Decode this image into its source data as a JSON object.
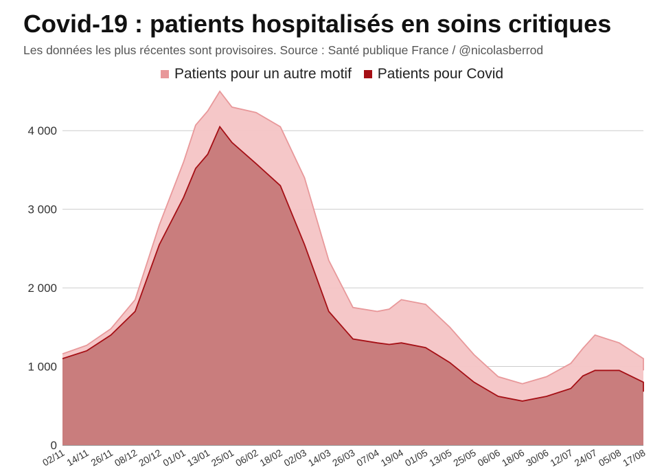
{
  "header": {
    "title": "Covid-19 : patients hospitalisés en soins critiques",
    "subtitle": "Les données les plus récentes sont provisoires. Source : Santé publique France / @nicolasberrod"
  },
  "legend": [
    {
      "label": "Patients pour un autre motif",
      "color": "#e8989a"
    },
    {
      "label": "Patients pour Covid",
      "color": "#a50f15"
    }
  ],
  "chart_data": {
    "type": "area",
    "stacked": true,
    "title": "Covid-19 : patients hospitalisés en soins critiques",
    "subtitle": "Les données les plus récentes sont provisoires. Source : Santé publique France / @nicolasberrod",
    "xlabel": "",
    "ylabel": "",
    "ylim": [
      0,
      4500
    ],
    "yticks": [
      0,
      1000,
      2000,
      3000,
      4000
    ],
    "ytick_labels": [
      "0",
      "1 000",
      "2 000",
      "3 000",
      "4 000"
    ],
    "grid": true,
    "legend_position": "top",
    "xtick_labels": [
      "02/11",
      "14/11",
      "26/11",
      "08/12",
      "20/12",
      "01/01",
      "13/01",
      "25/01",
      "06/02",
      "18/02",
      "02/03",
      "14/03",
      "26/03",
      "07/04",
      "19/04",
      "01/05",
      "13/05",
      "25/05",
      "06/06",
      "18/06",
      "30/06",
      "12/07",
      "24/07",
      "05/08",
      "17/08"
    ],
    "x": [
      "02/11",
      "14/11",
      "26/11",
      "08/12",
      "20/12",
      "01/01",
      "07/01",
      "13/01",
      "19/01",
      "25/01",
      "06/02",
      "18/02",
      "02/03",
      "14/03",
      "26/03",
      "07/04",
      "13/04",
      "19/04",
      "01/05",
      "13/05",
      "25/05",
      "06/06",
      "18/06",
      "30/06",
      "12/07",
      "18/07",
      "24/07",
      "05/08",
      "17/08",
      "21/08"
    ],
    "series": [
      {
        "name": "Patients pour Covid",
        "values": [
          1100,
          1200,
          1400,
          1700,
          2550,
          3150,
          3520,
          3700,
          4050,
          3850,
          3580,
          3300,
          2550,
          1700,
          1350,
          1300,
          1280,
          1300,
          1240,
          1050,
          800,
          620,
          560,
          620,
          720,
          880,
          950,
          950,
          800,
          680
        ]
      },
      {
        "name": "Patients pour un autre motif",
        "values": [
          60,
          70,
          80,
          150,
          250,
          450,
          550,
          550,
          450,
          450,
          650,
          750,
          850,
          650,
          400,
          400,
          450,
          550,
          550,
          450,
          350,
          250,
          220,
          250,
          320,
          350,
          450,
          350,
          300,
          270
        ]
      }
    ],
    "totals": [
      1160,
      1270,
      1480,
      1850,
      2800,
      3600,
      4070,
      4250,
      4500,
      4300,
      4230,
      4050,
      3400,
      2350,
      1750,
      1700,
      1730,
      1850,
      1790,
      1500,
      1150,
      870,
      780,
      870,
      1040,
      1230,
      1400,
      1300,
      1100,
      950
    ]
  }
}
